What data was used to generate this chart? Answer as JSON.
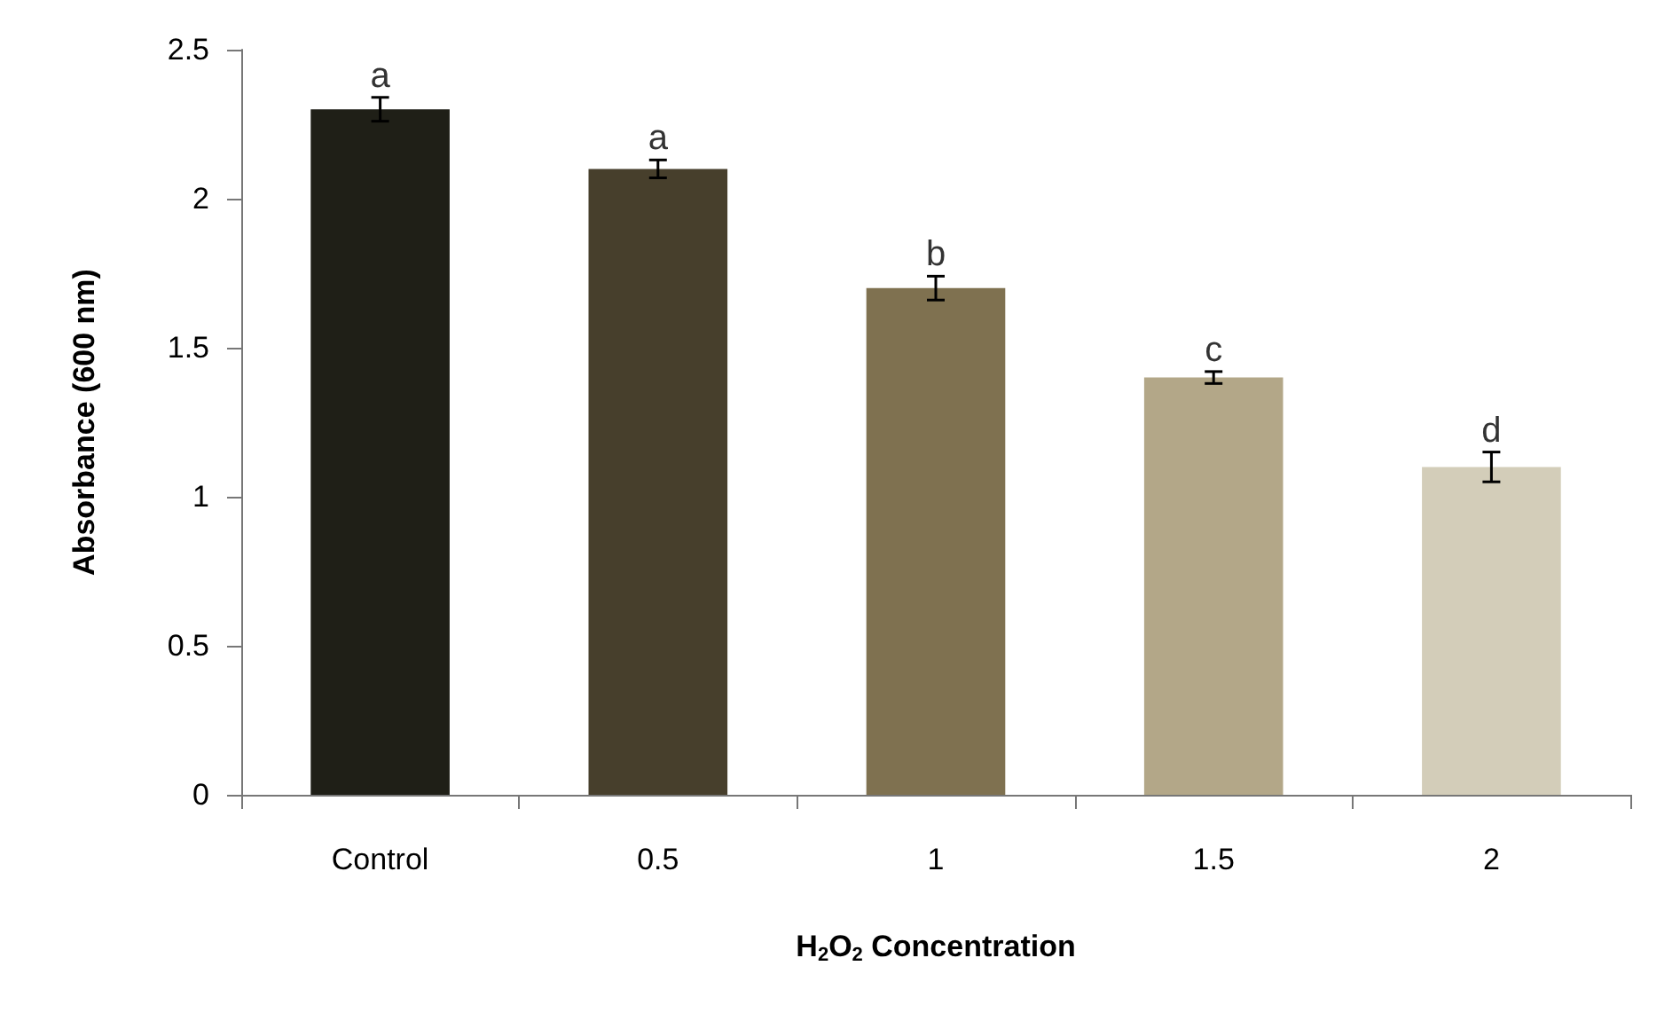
{
  "chart_data": {
    "type": "bar",
    "xlabel": "H$_{2}$O$_{2}$ Concentration",
    "ylabel": "Absorbance (600 nm)",
    "categories": [
      "Control",
      "0.5",
      "1",
      "1.5",
      "2"
    ],
    "values": [
      2.3,
      2.1,
      1.7,
      1.4,
      1.1
    ],
    "colors": [
      "#1f1f17",
      "#473f2c",
      "#7f7150",
      "#b3a788",
      "#d3cdb9"
    ],
    "errors": [
      0.04,
      0.03,
      0.04,
      0.02,
      0.05
    ],
    "ylim": [
      0,
      2.5
    ],
    "yticks": [
      0,
      0.5,
      1,
      1.5,
      2,
      2.5
    ],
    "grid": false,
    "annotations": [
      {
        "text": "a",
        "x": "Control",
        "y": 2.34
      },
      {
        "text": "a",
        "x": "0.5",
        "y": 2.13
      },
      {
        "text": "b",
        "x": "1",
        "y": 1.74
      },
      {
        "text": "c",
        "x": "1.5",
        "y": 1.42
      },
      {
        "text": "d",
        "x": "2",
        "y": 1.15
      }
    ]
  }
}
